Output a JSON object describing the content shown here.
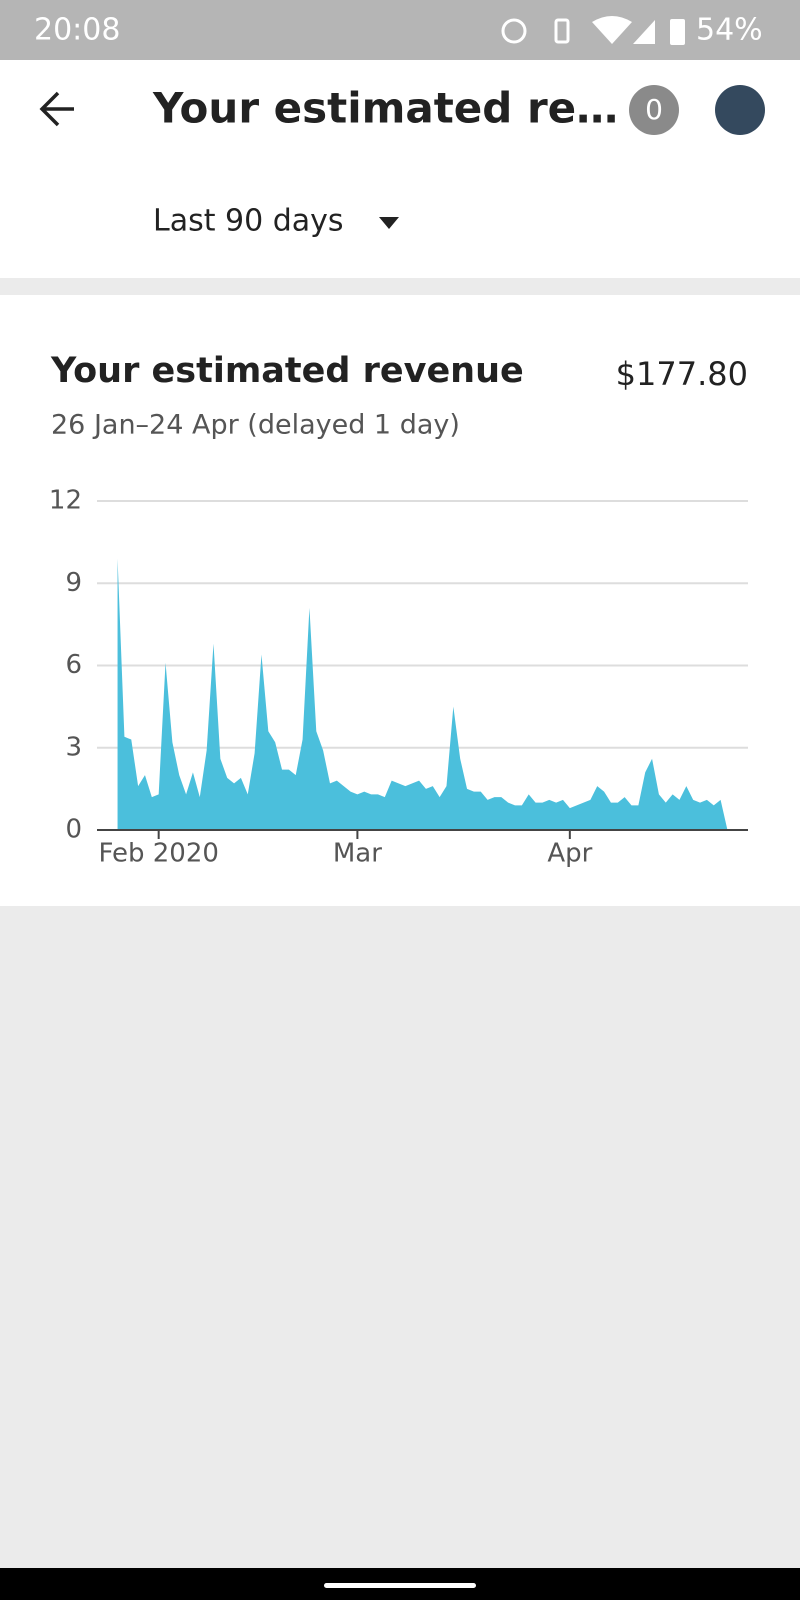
{
  "status_bar": {
    "time": "20:08",
    "battery": "54%"
  },
  "header": {
    "title": "Your estimated re…",
    "badge": "0"
  },
  "filter": {
    "label": "Last 90 days"
  },
  "card": {
    "title": "Your estimated revenue",
    "total": "$177.80",
    "subtitle": "26 Jan–24 Apr (delayed 1 day)"
  },
  "chart_data": {
    "type": "area",
    "color": "#4bbfdc",
    "grid": true,
    "x": [
      "2020-01-26",
      "2020-01-27",
      "2020-01-28",
      "2020-01-29",
      "2020-01-30",
      "2020-01-31",
      "2020-02-01",
      "2020-02-02",
      "2020-02-03",
      "2020-02-04",
      "2020-02-05",
      "2020-02-06",
      "2020-02-07",
      "2020-02-08",
      "2020-02-09",
      "2020-02-10",
      "2020-02-11",
      "2020-02-12",
      "2020-02-13",
      "2020-02-14",
      "2020-02-15",
      "2020-02-16",
      "2020-02-17",
      "2020-02-18",
      "2020-02-19",
      "2020-02-20",
      "2020-02-21",
      "2020-02-22",
      "2020-02-23",
      "2020-02-24",
      "2020-02-25",
      "2020-02-26",
      "2020-02-27",
      "2020-02-28",
      "2020-02-29",
      "2020-03-01",
      "2020-03-02",
      "2020-03-03",
      "2020-03-04",
      "2020-03-05",
      "2020-03-06",
      "2020-03-07",
      "2020-03-08",
      "2020-03-09",
      "2020-03-10",
      "2020-03-11",
      "2020-03-12",
      "2020-03-13",
      "2020-03-14",
      "2020-03-15",
      "2020-03-16",
      "2020-03-17",
      "2020-03-18",
      "2020-03-19",
      "2020-03-20",
      "2020-03-21",
      "2020-03-22",
      "2020-03-23",
      "2020-03-24",
      "2020-03-25",
      "2020-03-26",
      "2020-03-27",
      "2020-03-28",
      "2020-03-29",
      "2020-03-30",
      "2020-03-31",
      "2020-04-01",
      "2020-04-02",
      "2020-04-03",
      "2020-04-04",
      "2020-04-05",
      "2020-04-06",
      "2020-04-07",
      "2020-04-08",
      "2020-04-09",
      "2020-04-10",
      "2020-04-11",
      "2020-04-12",
      "2020-04-13",
      "2020-04-14",
      "2020-04-15",
      "2020-04-16",
      "2020-04-17",
      "2020-04-18",
      "2020-04-19",
      "2020-04-20",
      "2020-04-21",
      "2020-04-22",
      "2020-04-23",
      "2020-04-24"
    ],
    "values": [
      9.9,
      3.4,
      3.3,
      1.6,
      2.0,
      1.2,
      1.3,
      6.1,
      3.2,
      2.0,
      1.3,
      2.1,
      1.2,
      2.9,
      6.8,
      2.6,
      1.9,
      1.7,
      1.9,
      1.3,
      2.8,
      6.4,
      3.6,
      3.2,
      2.2,
      2.2,
      2.0,
      3.3,
      8.1,
      3.6,
      2.9,
      1.7,
      1.8,
      1.6,
      1.4,
      1.3,
      1.4,
      1.3,
      1.3,
      1.2,
      1.8,
      1.7,
      1.6,
      1.7,
      1.8,
      1.5,
      1.6,
      1.2,
      1.6,
      4.5,
      2.6,
      1.5,
      1.4,
      1.4,
      1.1,
      1.2,
      1.2,
      1.0,
      0.9,
      0.9,
      1.3,
      1.0,
      1.0,
      1.1,
      1.0,
      1.1,
      0.8,
      0.9,
      1.0,
      1.1,
      1.6,
      1.4,
      1.0,
      1.0,
      1.2,
      0.9,
      0.9,
      2.1,
      2.6,
      1.3,
      1.0,
      1.3,
      1.1,
      1.6,
      1.1,
      1.0,
      1.1,
      0.9,
      1.1,
      0
    ],
    "xlim": [
      "2020-01-23",
      "2020-04-27"
    ],
    "xticks": [
      {
        "value": "2020-02-01",
        "label": "Feb 2020"
      },
      {
        "value": "2020-03-01",
        "label": "Mar"
      },
      {
        "value": "2020-04-01",
        "label": "Apr"
      }
    ],
    "ylim": [
      0,
      12
    ],
    "yticks": [
      0,
      3,
      6,
      9,
      12
    ]
  }
}
